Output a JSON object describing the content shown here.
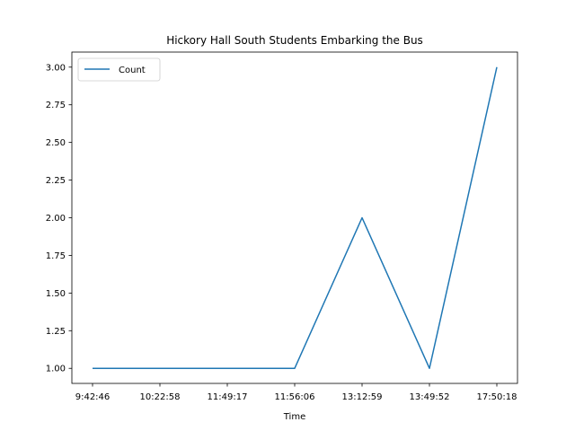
{
  "chart_data": {
    "type": "line",
    "title": "Hickory Hall South Students Embarking the Bus",
    "xlabel": "Time",
    "ylabel": "",
    "categories": [
      "9:42:46",
      "10:22:58",
      "11:49:17",
      "11:56:06",
      "13:12:59",
      "13:49:52",
      "17:50:18"
    ],
    "series": [
      {
        "name": "Count",
        "values": [
          1,
          1,
          1,
          1,
          2,
          1,
          3
        ],
        "color": "#1f77b4"
      }
    ],
    "ylim": [
      0.9,
      3.1
    ],
    "yticks": [
      "1.00",
      "1.25",
      "1.50",
      "1.75",
      "2.00",
      "2.25",
      "2.50",
      "2.75",
      "3.00"
    ],
    "grid": false,
    "legend_position": "upper-left"
  }
}
